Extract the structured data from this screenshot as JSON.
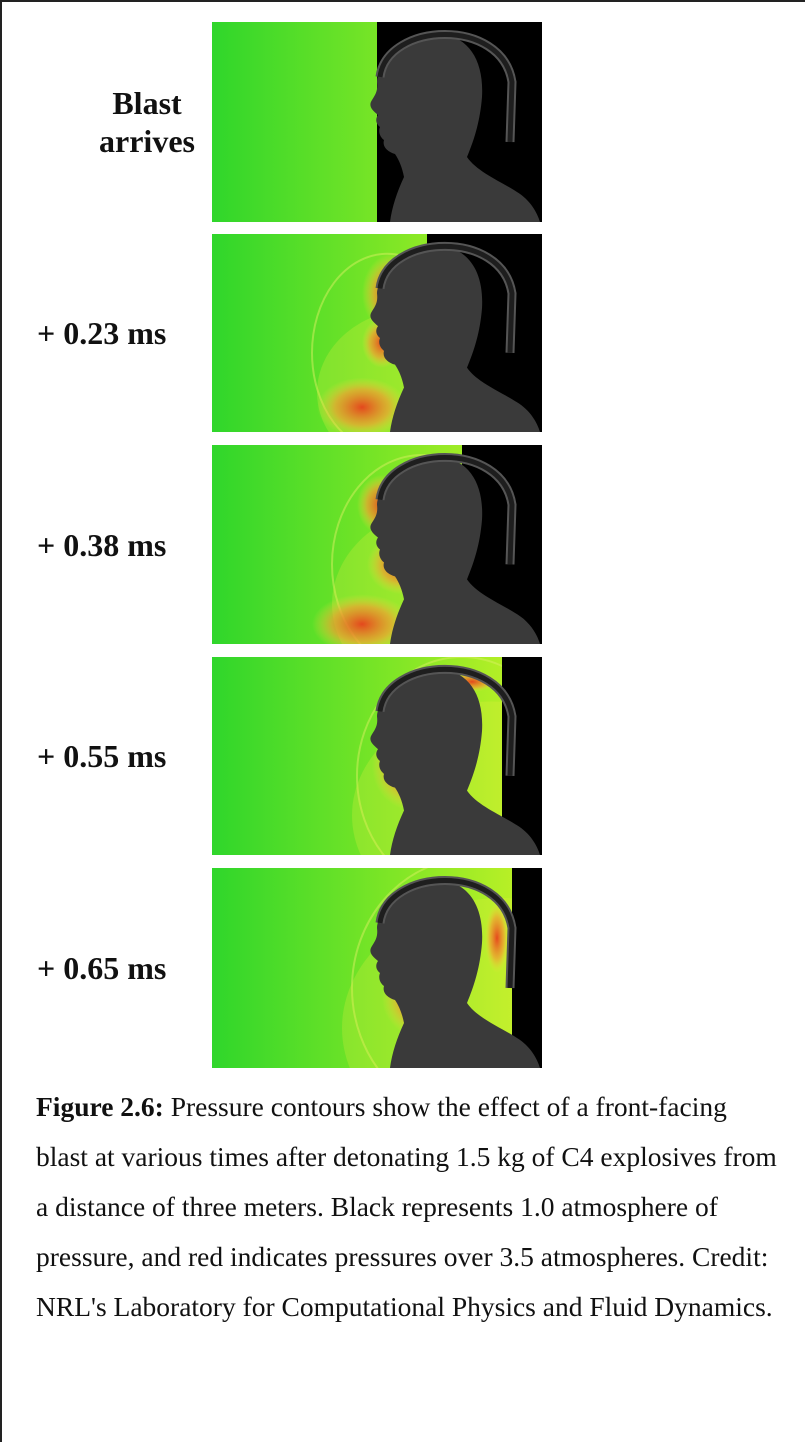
{
  "panels": [
    {
      "label": "Blast arrives"
    },
    {
      "label": "+ 0.23 ms"
    },
    {
      "label": "+ 0.38 ms"
    },
    {
      "label": "+ 0.55 ms"
    },
    {
      "label": "+ 0.65 ms"
    }
  ],
  "caption": {
    "label": "Figure 2.6:",
    "text": "Pressure contours show the effect of a front-facing blast at various times after detonating 1.5 kg of C4 explosives from a distance of three meters. Black represents 1.0 atmosphere of pressure, and red indicates pressures over 3.5 atmospheres. Credit: NRL's Laboratory for Computational Physics and Fluid Dynamics."
  }
}
